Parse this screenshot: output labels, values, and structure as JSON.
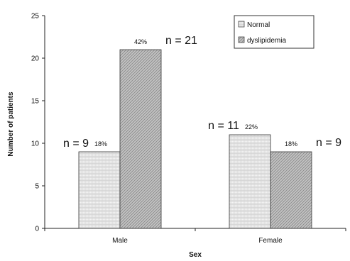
{
  "chart_data": {
    "type": "bar",
    "categories": [
      "Male",
      "Female"
    ],
    "series": [
      {
        "name": "Normal",
        "values": [
          9,
          11
        ],
        "percent_labels": [
          "18%",
          "22%"
        ],
        "n_labels": [
          "n = 9",
          "n = 11"
        ]
      },
      {
        "name": "dyslipidemia",
        "values": [
          21,
          9
        ],
        "percent_labels": [
          "42%",
          "18%"
        ],
        "n_labels": [
          "n = 21",
          "n = 9"
        ]
      }
    ],
    "xlabel": "Sex",
    "ylabel": "Number of patients",
    "ylim": [
      0,
      25
    ],
    "yticks": [
      0,
      5,
      10,
      15,
      20,
      25
    ],
    "legend_position": "top-right",
    "grid": false
  }
}
